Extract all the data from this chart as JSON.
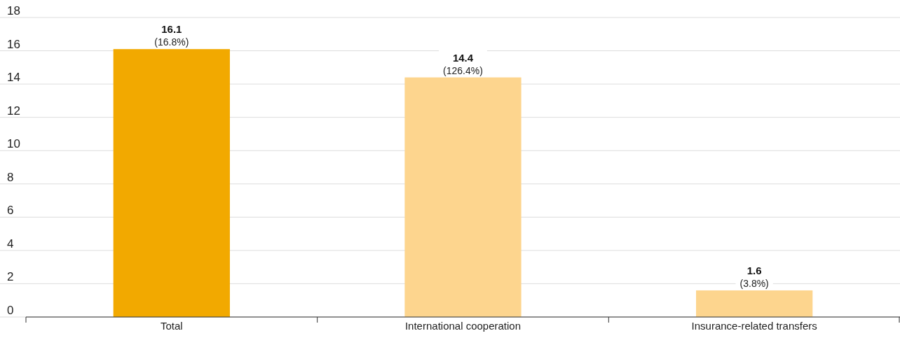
{
  "chart_data": {
    "type": "bar",
    "categories": [
      "Total",
      "International cooperation",
      "Insurance-related transfers"
    ],
    "values": [
      16.1,
      14.4,
      1.6
    ],
    "colors": [
      "#f2a900",
      "#fdd58e",
      "#fdd58e"
    ],
    "ylim": [
      0,
      18
    ],
    "yticks": [
      0,
      2,
      4,
      6,
      8,
      10,
      12,
      14,
      16,
      18
    ],
    "grid": "y",
    "data_labels": true,
    "annotations": [
      {
        "text": "(16.8%)",
        "x": "Total",
        "y": 16.1
      },
      {
        "text": "(126.4%)",
        "x": "International cooperation",
        "y": 14.4
      },
      {
        "text": "(3.8%)",
        "x": "Insurance-related transfers",
        "y": 1.6
      }
    ]
  }
}
